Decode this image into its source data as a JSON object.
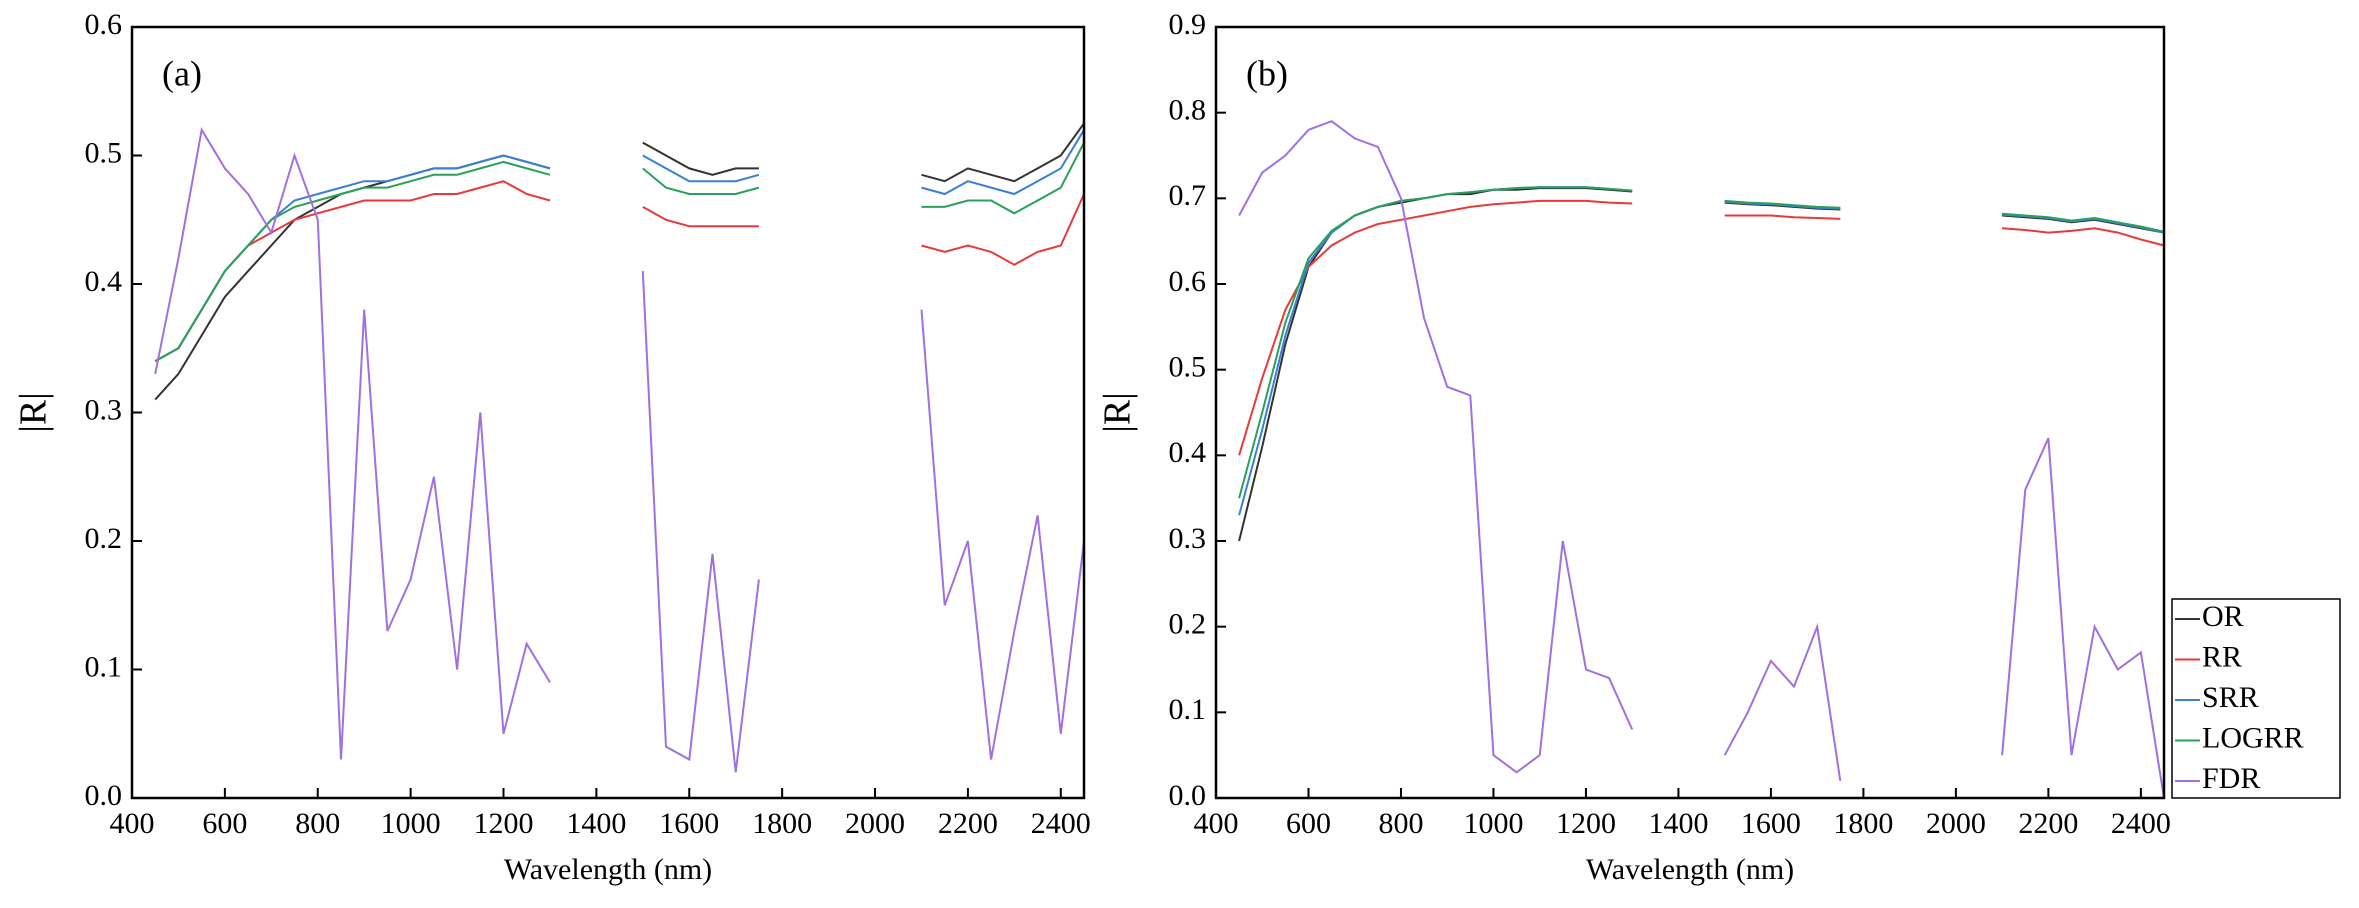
{
  "chart_data": [
    {
      "type": "line",
      "annotation": "(a)",
      "xlabel": "Wavelength (nm)",
      "ylabel": "|R|",
      "xlim": [
        400,
        2450
      ],
      "xticks": [
        400,
        600,
        800,
        1000,
        1200,
        1400,
        1600,
        1800,
        2000,
        2200,
        2400
      ],
      "ylim": [
        0,
        0.6
      ],
      "yticks": [
        {
          "value": 0,
          "label": "0.0"
        },
        0.1,
        0.2,
        0.3,
        0.4,
        0.5,
        0.6
      ],
      "grid": false,
      "x": [
        450,
        500,
        550,
        600,
        650,
        700,
        750,
        800,
        850,
        900,
        950,
        1000,
        1050,
        1100,
        1150,
        1200,
        1250,
        1300,
        1350,
        1400,
        1450,
        1500,
        1550,
        1600,
        1650,
        1700,
        1750,
        1800,
        1850,
        1900,
        1950,
        2000,
        2050,
        2100,
        2150,
        2200,
        2250,
        2300,
        2350,
        2400,
        2450
      ],
      "series": [
        {
          "name": "OR",
          "color": "#333333",
          "values": [
            0.31,
            0.33,
            0.36,
            0.39,
            0.41,
            0.43,
            0.45,
            0.46,
            0.47,
            0.475,
            0.48,
            0.485,
            0.49,
            0.49,
            0.495,
            0.5,
            0.495,
            0.49,
            null,
            null,
            null,
            0.51,
            0.5,
            0.49,
            0.485,
            0.49,
            0.49,
            null,
            null,
            null,
            null,
            null,
            null,
            0.485,
            0.48,
            0.49,
            0.485,
            0.48,
            0.49,
            0.5,
            0.525
          ]
        },
        {
          "name": "RR",
          "color": "#e83a3a",
          "values": [
            0.34,
            0.35,
            0.38,
            0.41,
            0.43,
            0.44,
            0.45,
            0.455,
            0.46,
            0.465,
            0.465,
            0.465,
            0.47,
            0.47,
            0.475,
            0.48,
            0.47,
            0.465,
            null,
            null,
            null,
            0.46,
            0.45,
            0.445,
            0.445,
            0.445,
            0.445,
            null,
            null,
            null,
            null,
            null,
            null,
            0.43,
            0.425,
            0.43,
            0.425,
            0.415,
            0.425,
            0.43,
            0.47
          ]
        },
        {
          "name": "SRR",
          "color": "#3a7fd8",
          "values": [
            0.34,
            0.35,
            0.38,
            0.41,
            0.43,
            0.45,
            0.465,
            0.47,
            0.475,
            0.48,
            0.48,
            0.485,
            0.49,
            0.49,
            0.495,
            0.5,
            0.495,
            0.49,
            null,
            null,
            null,
            0.5,
            0.49,
            0.48,
            0.48,
            0.48,
            0.485,
            null,
            null,
            null,
            null,
            null,
            null,
            0.475,
            0.47,
            0.48,
            0.475,
            0.47,
            0.48,
            0.49,
            0.52
          ]
        },
        {
          "name": "LOGRR",
          "color": "#2aa05a",
          "values": [
            0.34,
            0.35,
            0.38,
            0.41,
            0.43,
            0.45,
            0.46,
            0.465,
            0.47,
            0.475,
            0.475,
            0.48,
            0.485,
            0.485,
            0.49,
            0.495,
            0.49,
            0.485,
            null,
            null,
            null,
            0.49,
            0.475,
            0.47,
            0.47,
            0.47,
            0.475,
            null,
            null,
            null,
            null,
            null,
            null,
            0.46,
            0.46,
            0.465,
            0.465,
            0.455,
            0.465,
            0.475,
            0.51
          ]
        },
        {
          "name": "FDR",
          "color": "#a070e0",
          "values": [
            0.33,
            0.42,
            0.52,
            0.49,
            0.47,
            0.44,
            0.5,
            0.45,
            0.03,
            0.38,
            0.13,
            0.17,
            0.25,
            0.1,
            0.3,
            0.05,
            0.12,
            0.09,
            null,
            null,
            null,
            0.41,
            0.04,
            0.03,
            0.19,
            0.02,
            0.17,
            null,
            null,
            null,
            null,
            null,
            null,
            0.38,
            0.15,
            0.2,
            0.03,
            0.13,
            0.22,
            0.05,
            0.2
          ]
        }
      ]
    },
    {
      "type": "line",
      "annotation": "(b)",
      "xlabel": "Wavelength (nm)",
      "ylabel": "|R|",
      "xlim": [
        400,
        2450
      ],
      "xticks": [
        400,
        600,
        800,
        1000,
        1200,
        1400,
        1600,
        1800,
        2000,
        2200,
        2400
      ],
      "ylim": [
        0,
        0.9
      ],
      "yticks": [
        {
          "value": 0,
          "label": "0.0"
        },
        0.1,
        0.2,
        0.3,
        0.4,
        0.5,
        0.6,
        0.7,
        0.8,
        0.9
      ],
      "grid": false,
      "legend": "right",
      "x": [
        450,
        500,
        550,
        600,
        650,
        700,
        750,
        800,
        850,
        900,
        950,
        1000,
        1050,
        1100,
        1150,
        1200,
        1250,
        1300,
        1350,
        1400,
        1450,
        1500,
        1550,
        1600,
        1650,
        1700,
        1750,
        1800,
        1850,
        1900,
        1950,
        2000,
        2050,
        2100,
        2150,
        2200,
        2250,
        2300,
        2350,
        2400,
        2450
      ],
      "series": [
        {
          "name": "OR",
          "color": "#333333",
          "values": [
            0.3,
            0.41,
            0.53,
            0.62,
            0.66,
            0.68,
            0.69,
            0.695,
            0.7,
            0.705,
            0.705,
            0.71,
            0.71,
            0.712,
            0.712,
            0.712,
            0.71,
            0.708,
            null,
            null,
            null,
            0.695,
            0.693,
            0.692,
            0.69,
            0.688,
            0.687,
            null,
            null,
            null,
            null,
            null,
            null,
            0.68,
            0.678,
            0.676,
            0.672,
            0.675,
            0.67,
            0.665,
            0.66
          ]
        },
        {
          "name": "RR",
          "color": "#e83a3a",
          "values": [
            0.4,
            0.49,
            0.57,
            0.62,
            0.645,
            0.66,
            0.67,
            0.675,
            0.68,
            0.685,
            0.69,
            0.693,
            0.695,
            0.697,
            0.697,
            0.697,
            0.695,
            0.694,
            null,
            null,
            null,
            0.68,
            0.68,
            0.68,
            0.678,
            0.677,
            0.676,
            null,
            null,
            null,
            null,
            null,
            null,
            0.665,
            0.663,
            0.66,
            0.662,
            0.665,
            0.66,
            0.652,
            0.645
          ]
        },
        {
          "name": "SRR",
          "color": "#3a7fd8",
          "values": [
            0.33,
            0.43,
            0.54,
            0.625,
            0.66,
            0.68,
            0.69,
            0.697,
            0.7,
            0.705,
            0.707,
            0.71,
            0.712,
            0.713,
            0.713,
            0.713,
            0.711,
            0.709,
            null,
            null,
            null,
            0.696,
            0.694,
            0.693,
            0.691,
            0.689,
            0.688,
            null,
            null,
            null,
            null,
            null,
            null,
            0.681,
            0.679,
            0.677,
            0.673,
            0.676,
            0.671,
            0.666,
            0.66
          ]
        },
        {
          "name": "LOGRR",
          "color": "#2aa05a",
          "values": [
            0.35,
            0.45,
            0.555,
            0.63,
            0.662,
            0.68,
            0.69,
            0.697,
            0.7,
            0.705,
            0.707,
            0.71,
            0.712,
            0.713,
            0.713,
            0.713,
            0.711,
            0.709,
            null,
            null,
            null,
            0.697,
            0.695,
            0.694,
            0.692,
            0.69,
            0.689,
            null,
            null,
            null,
            null,
            null,
            null,
            0.682,
            0.68,
            0.678,
            0.674,
            0.677,
            0.672,
            0.667,
            0.661
          ]
        },
        {
          "name": "FDR",
          "color": "#a070e0",
          "values": [
            0.68,
            0.73,
            0.75,
            0.78,
            0.79,
            0.77,
            0.76,
            0.7,
            0.56,
            0.48,
            0.47,
            0.05,
            0.03,
            0.05,
            0.3,
            0.15,
            0.14,
            0.08,
            null,
            null,
            null,
            0.05,
            0.1,
            0.16,
            0.13,
            0.2,
            0.02,
            null,
            null,
            null,
            null,
            null,
            null,
            0.05,
            0.36,
            0.42,
            0.05,
            0.2,
            0.15,
            0.17,
            0.0
          ]
        }
      ]
    }
  ]
}
